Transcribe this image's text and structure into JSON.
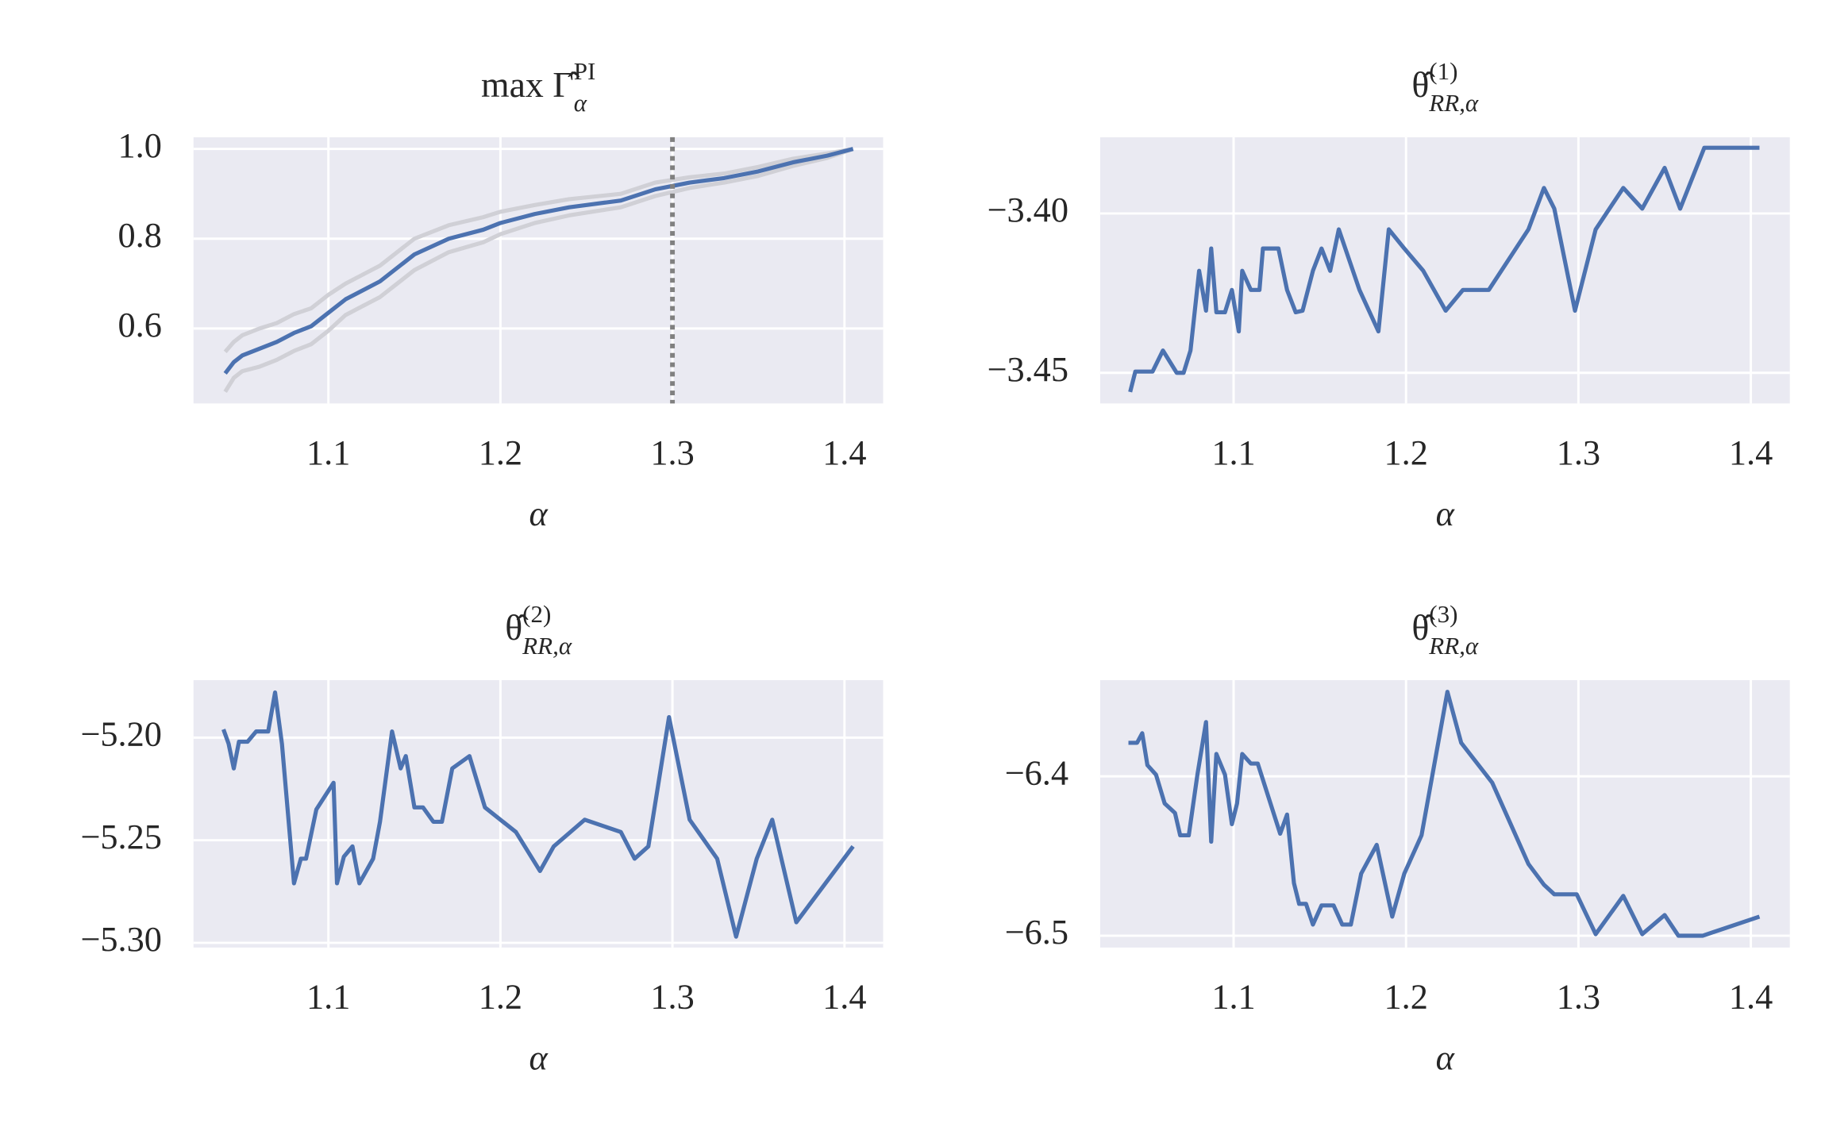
{
  "chart_data": [
    {
      "type": "line",
      "title": {
        "base": "max Γ̂",
        "sup": "PI",
        "sub": "α"
      },
      "xlabel": "α",
      "x": [
        1.04,
        1.045,
        1.05,
        1.06,
        1.07,
        1.08,
        1.09,
        1.1,
        1.11,
        1.12,
        1.13,
        1.14,
        1.15,
        1.17,
        1.19,
        1.2,
        1.22,
        1.24,
        1.27,
        1.29,
        1.31,
        1.33,
        1.35,
        1.37,
        1.39,
        1.405
      ],
      "series": [
        {
          "color": "#d0d0d6",
          "values": [
            0.548,
            0.57,
            0.585,
            0.6,
            0.612,
            0.632,
            0.645,
            0.675,
            0.7,
            0.72,
            0.74,
            0.77,
            0.8,
            0.83,
            0.848,
            0.86,
            0.875,
            0.888,
            0.9,
            0.925,
            0.937,
            0.945,
            0.96,
            0.978,
            0.99,
            1.0
          ]
        },
        {
          "color": "#d0d0d6",
          "values": [
            0.459,
            0.49,
            0.505,
            0.515,
            0.53,
            0.55,
            0.565,
            0.595,
            0.63,
            0.65,
            0.67,
            0.7,
            0.73,
            0.77,
            0.792,
            0.81,
            0.835,
            0.852,
            0.87,
            0.895,
            0.913,
            0.925,
            0.94,
            0.962,
            0.98,
            1.0
          ]
        },
        {
          "color": "#4c72b0",
          "values": [
            0.5,
            0.525,
            0.54,
            0.555,
            0.57,
            0.59,
            0.605,
            0.635,
            0.665,
            0.685,
            0.705,
            0.735,
            0.765,
            0.8,
            0.82,
            0.835,
            0.855,
            0.87,
            0.885,
            0.91,
            0.925,
            0.935,
            0.95,
            0.97,
            0.985,
            1.0
          ]
        }
      ],
      "vline": {
        "x": 1.3,
        "color": "#808080"
      },
      "xlim": [
        1.0216,
        1.4225
      ],
      "xticks": [
        1.1,
        1.2,
        1.3,
        1.4
      ],
      "ylim": [
        0.433,
        1.026
      ],
      "yticks": [
        {
          "value": 1.0,
          "label": "1.0"
        },
        0.8,
        0.6
      ],
      "grid": true
    },
    {
      "type": "line",
      "title": {
        "base": "θ̂",
        "sup": "(1)",
        "sub": "RR,α"
      },
      "xlabel": "α",
      "x": [
        1.04,
        1.043,
        1.053,
        1.059,
        1.067,
        1.071,
        1.075,
        1.08,
        1.084,
        1.087,
        1.09,
        1.095,
        1.099,
        1.103,
        1.105,
        1.11,
        1.115,
        1.117,
        1.126,
        1.131,
        1.136,
        1.14,
        1.146,
        1.151,
        1.156,
        1.161,
        1.173,
        1.184,
        1.19,
        1.199,
        1.21,
        1.223,
        1.233,
        1.248,
        1.271,
        1.28,
        1.286,
        1.298,
        1.31,
        1.326,
        1.337,
        1.35,
        1.359,
        1.373,
        1.405
      ],
      "series": [
        {
          "color": "#4c72b0",
          "values": [
            -3.456,
            -3.4496,
            -3.4496,
            -3.443,
            -3.45,
            -3.45,
            -3.443,
            -3.418,
            -3.4305,
            -3.411,
            -3.431,
            -3.431,
            -3.424,
            -3.437,
            -3.418,
            -3.424,
            -3.424,
            -3.411,
            -3.411,
            -3.424,
            -3.431,
            -3.4305,
            -3.418,
            -3.411,
            -3.418,
            -3.405,
            -3.424,
            -3.437,
            -3.405,
            -3.411,
            -3.418,
            -3.4305,
            -3.424,
            -3.424,
            -3.405,
            -3.392,
            -3.3985,
            -3.4305,
            -3.405,
            -3.392,
            -3.3985,
            -3.3857,
            -3.3985,
            -3.3794,
            -3.3794
          ]
        }
      ],
      "xlim": [
        1.0226,
        1.4226
      ],
      "xticks": [
        1.1,
        1.2,
        1.3,
        1.4
      ],
      "ylim": [
        -3.4596,
        -3.3761
      ],
      "yticks": [
        {
          "value": -3.4,
          "label": "−3.40"
        },
        {
          "value": -3.45,
          "label": "−3.45"
        }
      ],
      "grid": true
    },
    {
      "type": "line",
      "title": {
        "base": "θ̂",
        "sup": "(2)",
        "sub": "RR,α"
      },
      "xlabel": "α",
      "x": [
        1.039,
        1.042,
        1.045,
        1.048,
        1.053,
        1.058,
        1.065,
        1.069,
        1.073,
        1.08,
        1.084,
        1.087,
        1.093,
        1.103,
        1.105,
        1.109,
        1.114,
        1.118,
        1.126,
        1.13,
        1.137,
        1.142,
        1.145,
        1.15,
        1.155,
        1.161,
        1.166,
        1.172,
        1.182,
        1.191,
        1.209,
        1.223,
        1.231,
        1.249,
        1.27,
        1.278,
        1.286,
        1.298,
        1.31,
        1.326,
        1.337,
        1.349,
        1.358,
        1.372,
        1.405
      ],
      "series": [
        {
          "color": "#4c72b0",
          "values": [
            -5.196,
            -5.203,
            -5.215,
            -5.202,
            -5.202,
            -5.197,
            -5.197,
            -5.178,
            -5.203,
            -5.271,
            -5.259,
            -5.259,
            -5.235,
            -5.222,
            -5.271,
            -5.258,
            -5.253,
            -5.271,
            -5.259,
            -5.241,
            -5.197,
            -5.215,
            -5.209,
            -5.234,
            -5.234,
            -5.241,
            -5.241,
            -5.215,
            -5.209,
            -5.234,
            -5.246,
            -5.265,
            -5.253,
            -5.24,
            -5.246,
            -5.259,
            -5.253,
            -5.19,
            -5.24,
            -5.259,
            -5.297,
            -5.259,
            -5.24,
            -5.29,
            -5.253
          ]
        }
      ],
      "xlim": [
        1.0216,
        1.4225
      ],
      "xticks": [
        1.1,
        1.2,
        1.3,
        1.4
      ],
      "ylim": [
        -5.3023,
        -5.172
      ],
      "yticks": [
        {
          "value": -5.2,
          "label": "−5.20"
        },
        {
          "value": -5.25,
          "label": "−5.25"
        },
        {
          "value": -5.3,
          "label": "−5.30"
        }
      ],
      "grid": true
    },
    {
      "type": "line",
      "title": {
        "base": "θ̂",
        "sup": "(3)",
        "sub": "RR,α"
      },
      "xlabel": "α",
      "x": [
        1.039,
        1.044,
        1.047,
        1.05,
        1.055,
        1.06,
        1.066,
        1.069,
        1.074,
        1.079,
        1.084,
        1.087,
        1.09,
        1.095,
        1.099,
        1.102,
        1.105,
        1.11,
        1.114,
        1.127,
        1.131,
        1.135,
        1.138,
        1.142,
        1.146,
        1.151,
        1.158,
        1.163,
        1.168,
        1.174,
        1.183,
        1.192,
        1.199,
        1.209,
        1.224,
        1.232,
        1.25,
        1.271,
        1.28,
        1.286,
        1.299,
        1.31,
        1.326,
        1.337,
        1.35,
        1.358,
        1.372,
        1.405
      ],
      "series": [
        {
          "color": "#4c72b0",
          "values": [
            -6.379,
            -6.379,
            -6.373,
            -6.393,
            -6.399,
            -6.417,
            -6.423,
            -6.437,
            -6.437,
            -6.399,
            -6.366,
            -6.441,
            -6.386,
            -6.399,
            -6.43,
            -6.417,
            -6.386,
            -6.392,
            -6.392,
            -6.436,
            -6.424,
            -6.467,
            -6.48,
            -6.48,
            -6.493,
            -6.481,
            -6.481,
            -6.493,
            -6.493,
            -6.461,
            -6.443,
            -6.488,
            -6.461,
            -6.437,
            -6.347,
            -6.379,
            -6.404,
            -6.455,
            -6.468,
            -6.474,
            -6.474,
            -6.499,
            -6.475,
            -6.499,
            -6.487,
            -6.5,
            -6.5,
            -6.488
          ]
        }
      ],
      "xlim": [
        1.0226,
        1.4226
      ],
      "xticks": [
        1.1,
        1.2,
        1.3,
        1.4
      ],
      "ylim": [
        -6.5074,
        -6.3397
      ],
      "yticks": [
        {
          "value": -6.4,
          "label": "−6.4"
        },
        {
          "value": -6.5,
          "label": "−6.5"
        }
      ],
      "grid": true
    }
  ]
}
